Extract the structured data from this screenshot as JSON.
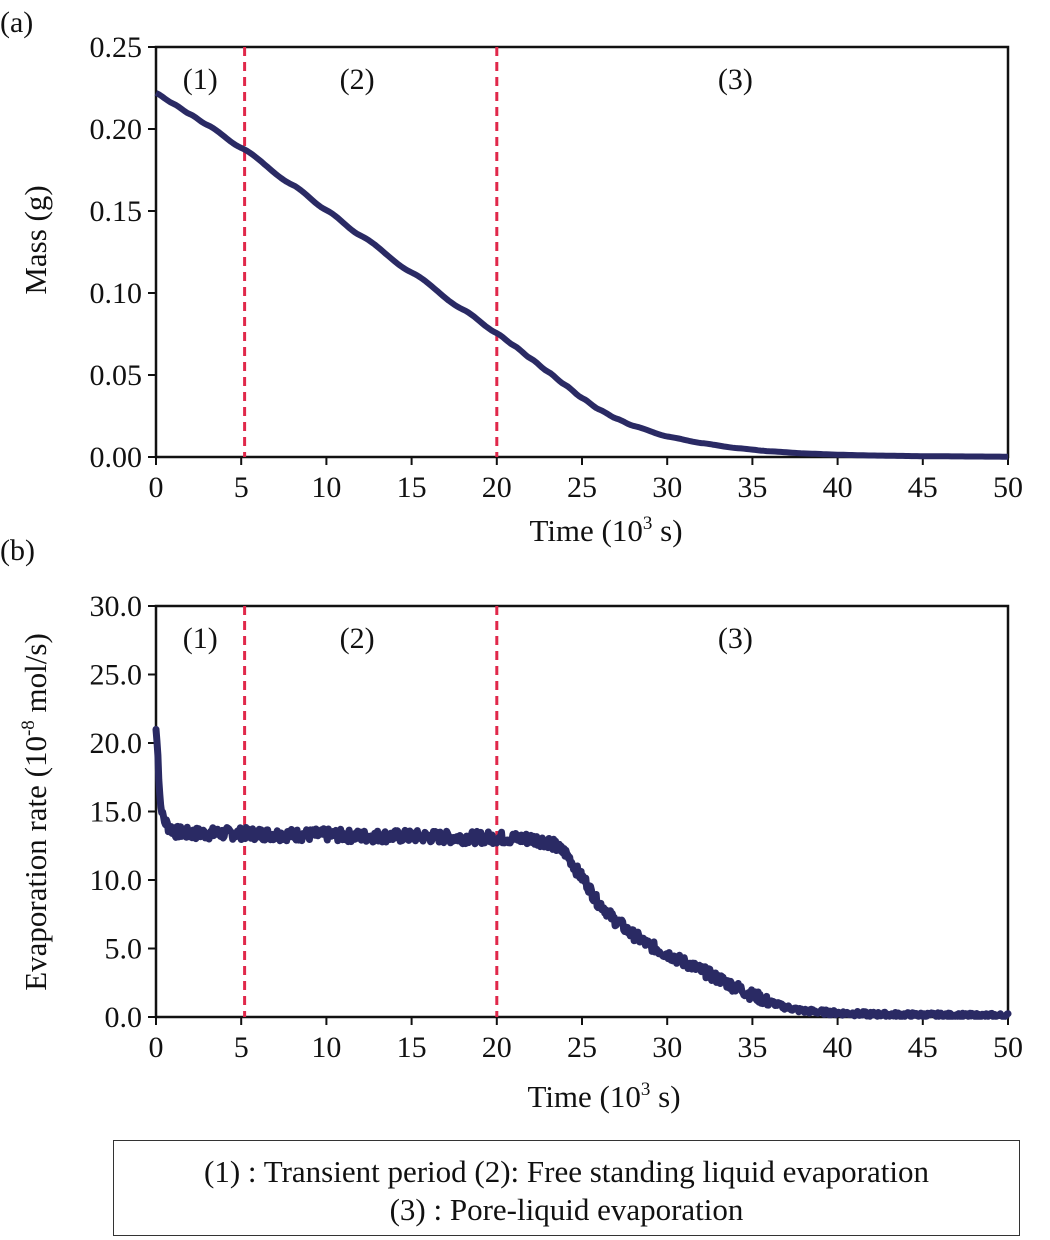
{
  "chart_data": [
    {
      "panel_label": "(a)",
      "type": "line",
      "xlabel_main": "Time (10",
      "xlabel_sup": "3",
      "xlabel_tail": " s)",
      "ylabel": "Mass (g)",
      "xlim": [
        0,
        50
      ],
      "ylim": [
        0,
        0.25
      ],
      "x_ticks": [
        "0",
        "5",
        "10",
        "15",
        "20",
        "25",
        "30",
        "35",
        "40",
        "45",
        "50"
      ],
      "y_ticks": [
        "0.00",
        "0.05",
        "0.10",
        "0.15",
        "0.20",
        "0.25"
      ],
      "line_color": "#2a2a64",
      "divider_color": "#e0284a",
      "dividers": [
        5.2,
        20
      ],
      "regions": [
        {
          "label": "(1)",
          "x": 2.6
        },
        {
          "label": "(2)",
          "x": 11.8
        },
        {
          "label": "(3)",
          "x": 34
        }
      ],
      "series": [
        {
          "name": "Mass",
          "x": [
            0,
            1,
            2,
            3,
            5,
            8,
            10,
            12,
            15,
            18,
            20,
            21,
            22,
            23,
            24,
            25,
            26,
            27,
            28,
            30,
            32,
            34,
            36,
            38,
            40,
            42,
            45,
            48,
            50
          ],
          "y": [
            0.222,
            0.2155,
            0.209,
            0.2025,
            0.1885,
            0.166,
            0.1505,
            0.135,
            0.1125,
            0.09,
            0.0755,
            0.068,
            0.06,
            0.052,
            0.044,
            0.036,
            0.029,
            0.0235,
            0.019,
            0.0125,
            0.0085,
            0.0055,
            0.0035,
            0.0022,
            0.0014,
            0.0009,
            0.0005,
            0.0003,
            0.0002
          ]
        }
      ]
    },
    {
      "panel_label": "(b)",
      "type": "line",
      "xlabel_main": "Time (10",
      "xlabel_sup": "3",
      "xlabel_tail": " s)",
      "ylabel_main": "Evaporation rate (10",
      "ylabel_sup": "-8",
      "ylabel_tail": " mol/s)",
      "xlim": [
        0,
        50
      ],
      "ylim": [
        0,
        30
      ],
      "x_ticks": [
        "0",
        "5",
        "10",
        "15",
        "20",
        "25",
        "30",
        "35",
        "40",
        "45",
        "50"
      ],
      "y_ticks": [
        "0.0",
        "5.0",
        "10.0",
        "15.0",
        "20.0",
        "25.0",
        "30.0"
      ],
      "line_color": "#2a2a64",
      "divider_color": "#e0284a",
      "dividers": [
        5.2,
        20
      ],
      "regions": [
        {
          "label": "(1)",
          "x": 2.6
        },
        {
          "label": "(2)",
          "x": 11.8
        },
        {
          "label": "(3)",
          "x": 34
        }
      ],
      "series": [
        {
          "name": "Evaporation rate",
          "x": [
            0,
            0.1,
            0.2,
            0.3,
            0.5,
            0.8,
            1.2,
            2,
            3,
            5,
            8,
            10,
            12,
            15,
            18,
            20,
            22,
            23,
            24,
            25,
            26,
            27,
            28,
            29,
            30,
            31,
            32,
            33,
            34,
            35,
            36,
            37,
            38,
            40,
            42,
            45,
            48,
            50
          ],
          "y": [
            21.0,
            19.5,
            16.5,
            15.2,
            14.3,
            13.8,
            13.5,
            13.4,
            13.4,
            13.4,
            13.3,
            13.3,
            13.2,
            13.2,
            13.1,
            13.1,
            13.0,
            12.8,
            12.0,
            10.2,
            8.3,
            7.0,
            6.0,
            5.2,
            4.6,
            4.0,
            3.4,
            2.8,
            2.2,
            1.6,
            1.1,
            0.7,
            0.45,
            0.3,
            0.2,
            0.15,
            0.1,
            0.1
          ]
        }
      ]
    }
  ],
  "legend": {
    "line1": "(1) : Transient period  (2): Free standing liquid evaporation",
    "line2": "(3) : Pore-liquid evaporation"
  }
}
